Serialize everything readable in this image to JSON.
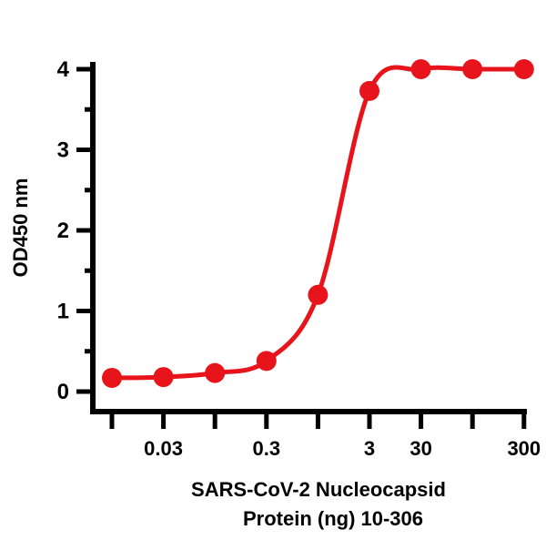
{
  "chart_data": {
    "type": "line",
    "title": "",
    "xlabel": [
      "SARS-CoV-2 Nucleocapsid",
      "Protein (ng) 10-306"
    ],
    "ylabel": "OD450 nm",
    "x_scale": "log",
    "x_tick_labels": [
      "",
      "0.03",
      "",
      "0.3",
      "",
      "3",
      "30",
      "",
      "300"
    ],
    "y_ticks": [
      "0",
      "1",
      "2",
      "3",
      "4"
    ],
    "ylim": [
      0,
      4
    ],
    "y_minor_step": 0.5,
    "grid": false,
    "series": [
      {
        "values": [
          0.17,
          0.18,
          0.23,
          0.38,
          1.2,
          3.73,
          4.0,
          4.0,
          4.0
        ],
        "color": "#e8141b",
        "marker": "circle"
      }
    ]
  }
}
